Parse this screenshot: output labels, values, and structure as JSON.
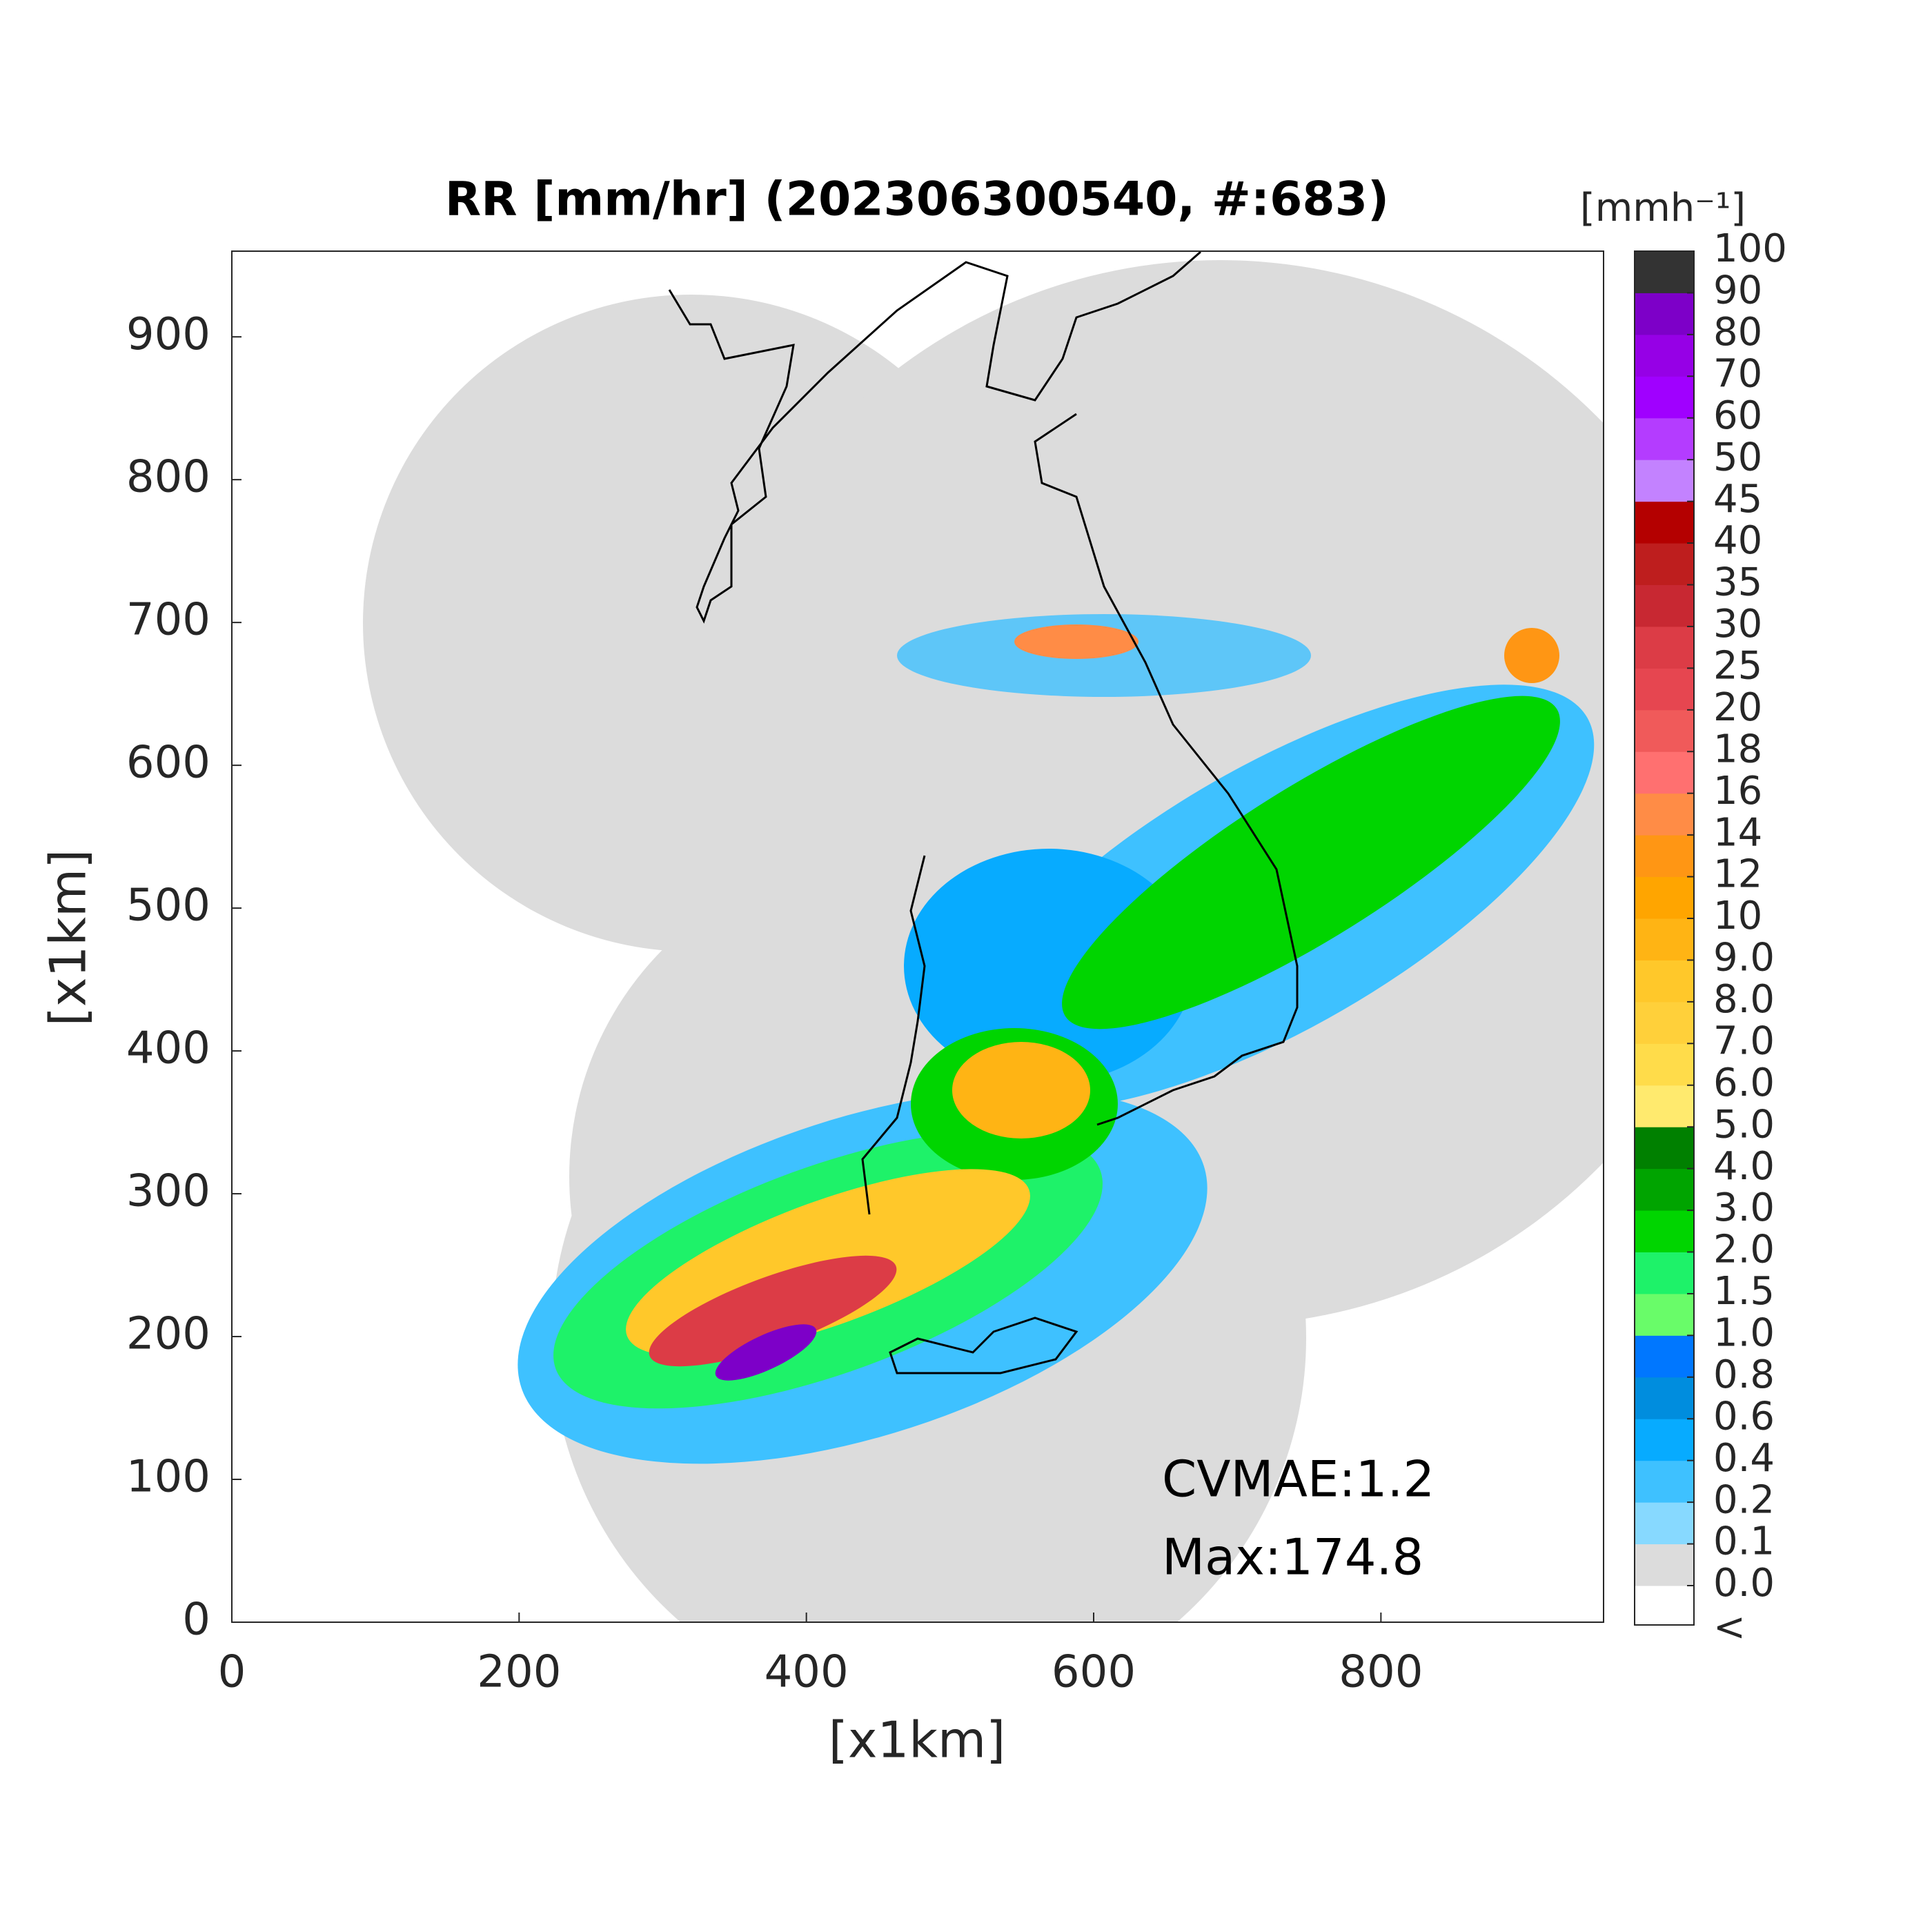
{
  "chart_data": {
    "type": "radar-map",
    "title": "RR [mm/hr] (202306300540, #:683)",
    "x_label": "[x1km]",
    "y_label": "[x1km]",
    "xlim": [
      0,
      955
    ],
    "ylim": [
      0,
      960
    ],
    "xticks": [
      0,
      200,
      400,
      600,
      800
    ],
    "yticks": [
      0,
      100,
      200,
      300,
      400,
      500,
      600,
      700,
      800,
      900
    ],
    "annotations": [
      "CVMAE:1.2",
      "Max:174.8"
    ],
    "colorbar": {
      "title": "[mmh⁻¹]",
      "below_label": "<",
      "below_color": "#ffffff",
      "ticks": [
        {
          "value": 0,
          "label": "0.0"
        },
        0.1,
        0.2,
        0.4,
        0.6,
        0.8,
        {
          "value": 1,
          "label": "1.0"
        },
        1.5,
        {
          "value": 2,
          "label": "2.0"
        },
        {
          "value": 3,
          "label": "3.0"
        },
        {
          "value": 4,
          "label": "4.0"
        },
        {
          "value": 5,
          "label": "5.0"
        },
        {
          "value": 6,
          "label": "6.0"
        },
        {
          "value": 7,
          "label": "7.0"
        },
        {
          "value": 8,
          "label": "8.0"
        },
        {
          "value": 9,
          "label": "9.0"
        },
        10,
        12,
        14,
        16,
        18,
        20,
        25,
        30,
        35,
        40,
        45,
        50,
        60,
        70,
        80,
        90,
        100
      ],
      "colors": [
        "#dcdcdc",
        "#87d9ff",
        "#3ec1ff",
        "#07abff",
        "#008dde",
        "#0077ff",
        "#69fc69",
        "#1ef269",
        "#00d500",
        "#00a400",
        "#008000",
        "#ffea6e",
        "#ffdc4a",
        "#ffd03a",
        "#ffc82a",
        "#ffb414",
        "#ffa500",
        "#ff9614",
        "#ff8c46",
        "#ff7070",
        "#f05a5a",
        "#e64650",
        "#dc3c46",
        "#c82832",
        "#be1e1e",
        "#b40000",
        "#c382ff",
        "#b43cff",
        "#a000ff",
        "#9600e6",
        "#7d00c8",
        "#333333"
      ]
    }
  }
}
